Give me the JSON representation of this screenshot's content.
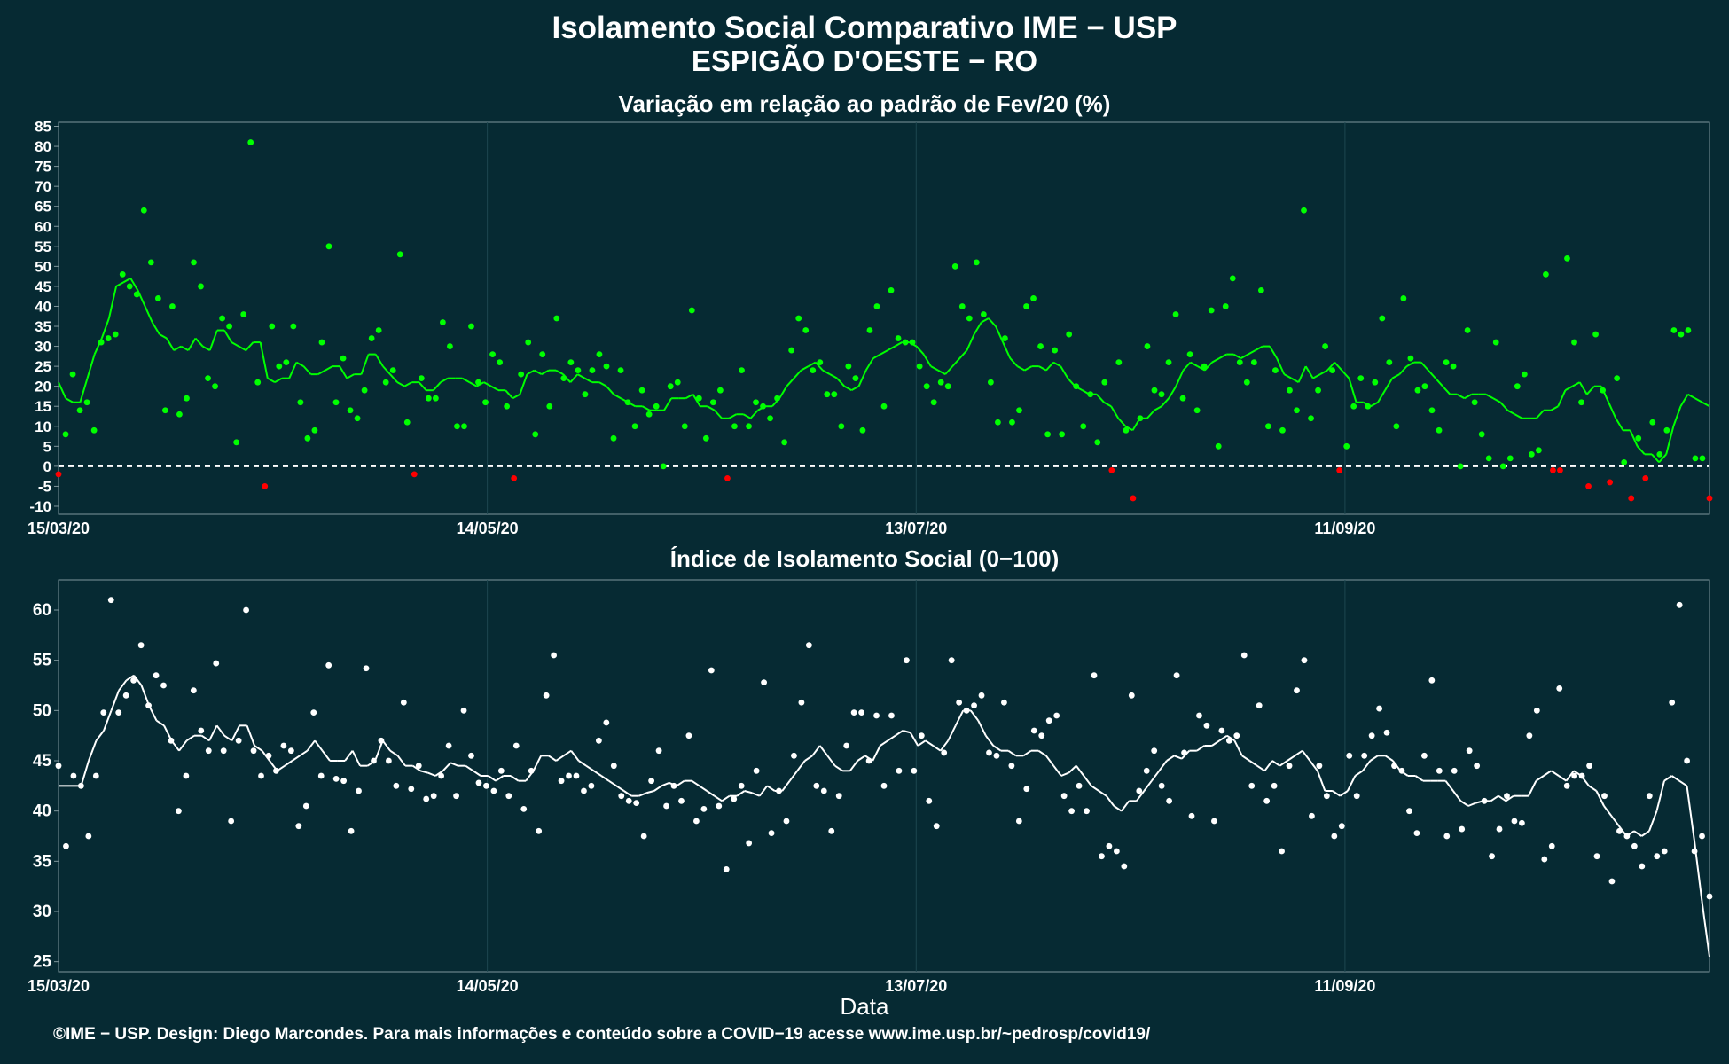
{
  "title": "Isolamento Social Comparativo IME − USP",
  "subtitle": "ESPIGÃO D'OESTE − RO",
  "xlabel": "Data",
  "caption": "©IME − USP. Design: Diego Marcondes. Para mais informações e conteúdo sobre a COVID−19 acesse www.ime.usp.br/~pedrosp/covid19/",
  "colors": {
    "background": "#062a33",
    "positive": "#00ff00",
    "negative": "#ff0000",
    "index": "#ffffff",
    "grid": "#1d4750"
  },
  "chart_data": [
    {
      "type": "scatter",
      "title": "Variação em relação ao padrão de Fev/20 (%)",
      "x_ticks": [
        "15/03/20",
        "14/05/20",
        "13/07/20",
        "11/09/20"
      ],
      "y_ticks": [
        -10,
        -5,
        0,
        5,
        10,
        15,
        20,
        25,
        30,
        35,
        40,
        45,
        50,
        55,
        60,
        65,
        70,
        75,
        80,
        85
      ],
      "ylim": [
        -12,
        86
      ],
      "x_range_days": [
        0,
        231
      ],
      "reference_line": 0,
      "grid": true,
      "series": [
        {
          "kind": "points",
          "values": [
            -2,
            8,
            23,
            14,
            16,
            9,
            31,
            32,
            33,
            48,
            45,
            43,
            64,
            51,
            42,
            14,
            40,
            13,
            17,
            51,
            45,
            22,
            20,
            37,
            35,
            6,
            38,
            81,
            21,
            -5,
            35,
            25,
            26,
            35,
            16,
            7,
            9,
            31,
            55,
            16,
            27,
            14,
            12,
            19,
            32,
            34,
            21,
            24,
            53,
            11,
            -2,
            22,
            17,
            17,
            36,
            30,
            10,
            10,
            35,
            21,
            16,
            28,
            26,
            15,
            -3,
            23,
            31,
            8,
            28,
            15,
            37,
            22,
            26,
            24,
            18,
            24,
            28,
            25,
            7,
            24,
            16,
            10,
            19,
            13,
            15,
            0,
            20,
            21,
            10,
            39,
            17,
            7,
            16,
            19,
            -3,
            10,
            24,
            10,
            16,
            15,
            12,
            17,
            6,
            29,
            37,
            34,
            24,
            26,
            18,
            18,
            10,
            25,
            22,
            9,
            34,
            40,
            15,
            44,
            32,
            31,
            31,
            25,
            20,
            16,
            21,
            20,
            50,
            40,
            37,
            51,
            38,
            21,
            11,
            32,
            11,
            14,
            40,
            42,
            30,
            8,
            29,
            8,
            33,
            20,
            10,
            18,
            6,
            21,
            -1,
            26,
            9,
            -8,
            12,
            30,
            19,
            18,
            26,
            38,
            17,
            28,
            14,
            25,
            39,
            5,
            40,
            47,
            26,
            21,
            26,
            44,
            10,
            24,
            9,
            19,
            14,
            64,
            12,
            19,
            30,
            24,
            -1,
            5,
            15,
            22,
            15,
            21,
            37,
            26,
            10,
            42,
            27,
            19,
            20,
            14,
            9,
            26,
            25,
            0,
            34,
            16,
            8,
            2,
            31,
            0,
            2,
            20,
            23,
            3,
            4,
            48,
            -1,
            -1,
            52,
            31,
            16,
            -5,
            33,
            19,
            -4,
            22,
            1,
            -8,
            7,
            -3,
            11,
            3,
            9,
            34,
            33,
            34,
            2,
            2,
            -8
          ]
        },
        {
          "kind": "moving_average",
          "values": [
            21,
            17,
            16,
            16,
            22,
            28,
            32,
            37,
            45,
            46,
            47,
            44,
            40,
            36,
            33,
            32,
            29,
            30,
            29,
            32,
            30,
            29,
            34,
            34,
            31,
            30,
            29,
            31,
            31,
            22,
            21,
            22,
            22,
            26,
            25,
            23,
            23,
            24,
            25,
            25,
            22,
            23,
            23,
            28,
            28,
            25,
            23,
            21,
            20,
            21,
            21,
            19,
            19,
            21,
            22,
            22,
            22,
            21,
            20,
            21,
            20,
            19,
            19,
            17,
            18,
            23,
            24,
            23,
            24,
            24,
            23,
            21,
            23,
            22,
            21,
            21,
            20,
            18,
            17,
            16,
            15,
            15,
            14,
            14,
            14,
            17,
            17,
            17,
            18,
            15,
            15,
            14,
            12,
            12,
            13,
            13,
            12,
            14,
            15,
            15,
            17,
            20,
            22,
            24,
            25,
            26,
            24,
            23,
            22,
            20,
            19,
            20,
            24,
            27,
            28,
            29,
            30,
            31,
            31,
            30,
            28,
            25,
            24,
            23,
            25,
            27,
            29,
            33,
            36,
            37,
            35,
            31,
            27,
            25,
            24,
            25,
            25,
            24,
            26,
            25,
            22,
            20,
            19,
            18,
            18,
            16,
            15,
            12,
            10,
            9,
            12,
            12,
            14,
            15,
            17,
            20,
            24,
            26,
            25,
            24,
            26,
            27,
            28,
            28,
            27,
            28,
            29,
            30,
            30,
            27,
            23,
            22,
            21,
            25,
            22,
            23,
            24,
            26,
            24,
            22,
            16,
            16,
            15,
            16,
            19,
            22,
            23,
            25,
            26,
            26,
            24,
            22,
            20,
            18,
            18,
            17,
            18,
            18,
            18,
            17,
            16,
            14,
            13,
            12,
            12,
            12,
            14,
            14,
            15,
            19,
            20,
            21,
            18,
            20,
            20,
            16,
            12,
            9,
            9,
            5,
            3,
            3,
            1,
            3,
            10,
            15,
            18,
            17,
            16,
            15
          ]
        }
      ]
    },
    {
      "type": "scatter",
      "title": "Índice de Isolamento Social (0−100)",
      "x_ticks": [
        "15/03/20",
        "14/05/20",
        "13/07/20",
        "11/09/20"
      ],
      "y_ticks": [
        25,
        30,
        35,
        40,
        45,
        50,
        55,
        60
      ],
      "ylim": [
        24,
        63
      ],
      "x_range_days": [
        0,
        231
      ],
      "grid": true,
      "series": [
        {
          "kind": "points",
          "values": [
            44.5,
            36.5,
            43.5,
            42.5,
            37.5,
            43.5,
            49.8,
            61,
            49.8,
            51.5,
            53,
            56.5,
            50.5,
            53.5,
            52.5,
            47,
            40,
            43.5,
            52,
            48,
            46,
            54.7,
            46,
            39,
            47,
            60,
            46,
            43.5,
            45.5,
            44,
            46.5,
            46,
            38.5,
            40.5,
            49.8,
            43.5,
            54.5,
            43.2,
            43,
            38,
            42,
            54.2,
            45,
            47,
            45,
            42.5,
            50.8,
            42.2,
            44.5,
            41.2,
            41.5,
            43.5,
            46.5,
            41.5,
            50,
            45.5,
            42.8,
            42.5,
            42,
            44,
            41.5,
            46.5,
            40.2,
            44,
            38,
            51.5,
            55.5,
            43,
            43.5,
            43.5,
            42,
            42.5,
            47,
            48.8,
            44.5,
            41.5,
            41,
            40.8,
            37.5,
            43,
            46,
            40.5,
            42.5,
            41,
            47.5,
            39,
            40.2,
            54,
            40.5,
            34.2,
            41.2,
            42.5,
            36.8,
            44,
            52.8,
            37.8,
            42,
            39,
            45.5,
            50.8,
            56.5,
            42.5,
            42,
            38,
            41.5,
            46.5,
            49.8,
            49.8,
            45,
            49.5,
            42.5,
            49.5,
            44,
            55,
            44,
            47.5,
            41,
            38.5,
            45.8,
            55,
            50.8,
            50,
            50.5,
            51.5,
            45.8,
            45.5,
            50.8,
            44.5,
            39,
            42.2,
            48,
            47.5,
            49,
            49.5,
            41.5,
            40,
            42.5,
            40,
            53.5,
            35.5,
            36.5,
            36,
            34.5,
            51.5,
            42,
            44,
            46,
            42.5,
            41,
            53.5,
            45.8,
            39.5,
            49.5,
            48.5,
            39,
            48,
            47,
            47.5,
            55.5,
            42.5,
            50.5,
            41,
            42.5,
            36,
            44.5,
            52,
            55,
            39.5,
            44.5,
            41.5,
            37.5,
            38.5,
            45.5,
            41.5,
            45.5,
            47.5,
            50.2,
            47.8,
            44.5,
            44,
            40,
            37.8,
            45.5,
            53,
            44,
            37.5,
            44,
            38.2,
            46,
            44.5,
            41,
            35.5,
            38.2,
            41.5,
            39,
            38.8,
            47.5,
            50,
            35.2,
            36.5,
            52.2,
            42.5,
            43.5,
            43.5,
            44.5,
            35.5,
            41.5,
            33,
            38,
            37.5,
            36.5,
            34.5,
            41.5,
            35.5,
            36,
            50.8,
            60.5,
            45,
            36,
            37.5,
            31.5
          ]
        },
        {
          "kind": "moving_average",
          "values": [
            42.5,
            42.5,
            42.5,
            42.5,
            45,
            47,
            48,
            50,
            52,
            53,
            53.5,
            52.5,
            50.5,
            49,
            48.5,
            47,
            46,
            47,
            47.5,
            47.5,
            47,
            48.5,
            47.5,
            47,
            48.5,
            48.5,
            46.5,
            46,
            45,
            44,
            44.5,
            45,
            45.5,
            46,
            47,
            46,
            45,
            45,
            45,
            46,
            44.5,
            44.5,
            45,
            47,
            46,
            45.5,
            44.5,
            44.5,
            44,
            43.8,
            43.5,
            44,
            44.8,
            44.5,
            44.5,
            44,
            43.5,
            43.5,
            43,
            43.5,
            43.5,
            43,
            43,
            44,
            45.5,
            45.5,
            45,
            45.5,
            46,
            45,
            44.5,
            44,
            43.5,
            43,
            42.5,
            42,
            41.5,
            41.5,
            41.8,
            42,
            42.5,
            42.8,
            42.5,
            43,
            43,
            42.5,
            42,
            41.5,
            41,
            41.5,
            41.5,
            42,
            41.8,
            41.5,
            42.5,
            42,
            42,
            43,
            44,
            45,
            45.5,
            46.5,
            45.5,
            44.5,
            44,
            44,
            45,
            45.5,
            45,
            46.5,
            47,
            47.5,
            48,
            47.8,
            46.5,
            47,
            46.5,
            46,
            47,
            48.5,
            50,
            50,
            49,
            47.5,
            46.5,
            46,
            46,
            45.5,
            45.5,
            46,
            46,
            45.5,
            44.5,
            43.5,
            43.8,
            44.5,
            43.5,
            42.5,
            42,
            41.5,
            40.5,
            40,
            41,
            41,
            42,
            43,
            44,
            45,
            45.5,
            45.2,
            46,
            46,
            46.5,
            46.5,
            47,
            47.5,
            47,
            45.5,
            45,
            44.5,
            44,
            45,
            44.5,
            45,
            45.5,
            46,
            45,
            44,
            42,
            42,
            41.5,
            42,
            43.5,
            44,
            45,
            45.5,
            45.5,
            45,
            44,
            43.5,
            43.5,
            43,
            43,
            43,
            43,
            42,
            41,
            40.5,
            40.8,
            41,
            41,
            41.5,
            41,
            41.5,
            41.5,
            41.5,
            43,
            43.5,
            44,
            43.5,
            43,
            44,
            43.5,
            42.5,
            42,
            40.5,
            39.5,
            38.5,
            37.5,
            38,
            37.5,
            38,
            40,
            43,
            43.5,
            43,
            42.5,
            37,
            31,
            25.5
          ]
        }
      ]
    }
  ]
}
